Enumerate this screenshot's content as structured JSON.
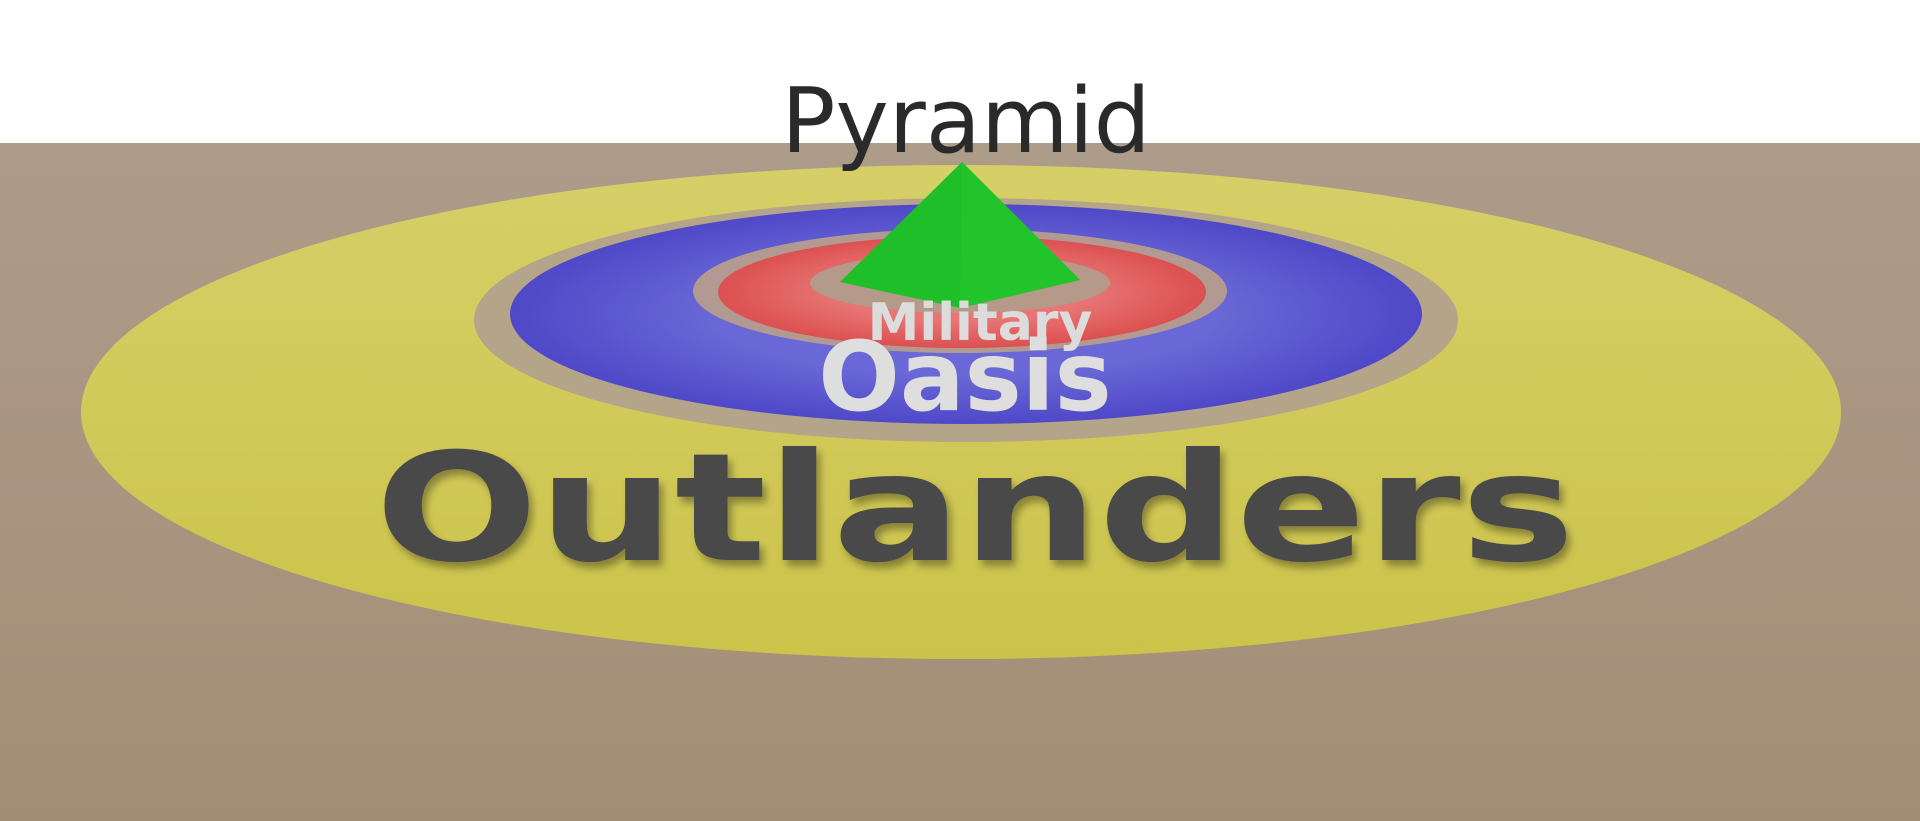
{
  "diagram": {
    "labels": {
      "pyramid": "Pyramid",
      "military": "Military",
      "oasis": "Oasis",
      "outlanders": "Outlanders"
    },
    "colors": {
      "sky": "#ffffff",
      "ground": "#a89580",
      "outer_ring": "#d0c85a",
      "blue_ring": "#5a55cc",
      "red_ring": "#e05c5c",
      "center_gap": "#a89580",
      "pyramid": "#1fbf2a",
      "pyramid_label": "#2a2a2a",
      "inner_labels": "#dcdcdc",
      "outlanders_label": "#4a4a4a"
    }
  }
}
